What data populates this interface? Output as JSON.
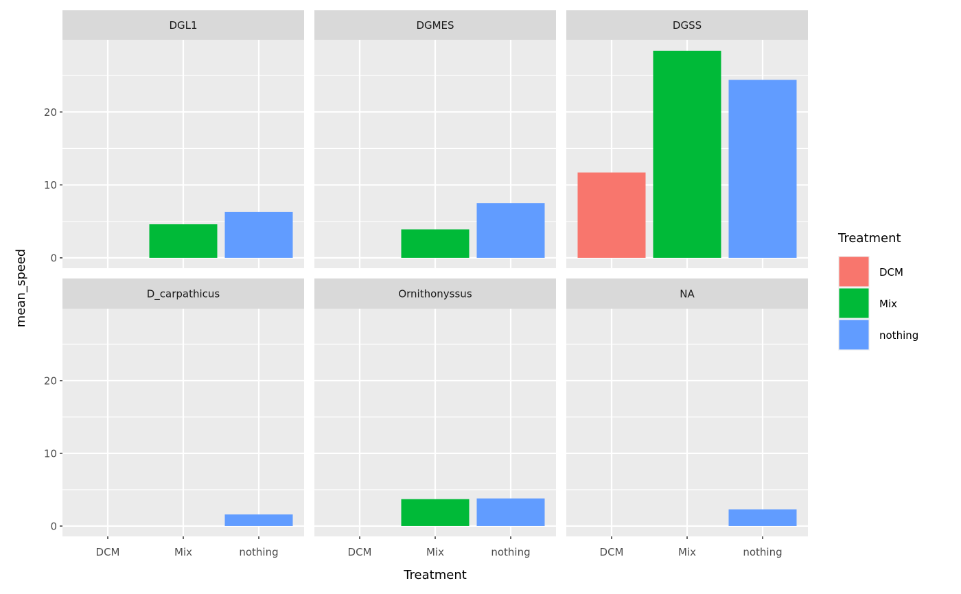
{
  "chart_data": {
    "type": "bar",
    "layout": "facet_wrap",
    "xlabel": "Treatment",
    "ylabel": "mean_speed",
    "categories": [
      "DCM",
      "Mix",
      "nothing"
    ],
    "ylim": [
      -1.42,
      29.9
    ],
    "yticks": [
      0,
      10,
      20
    ],
    "yticks_minor": [
      5,
      15,
      25
    ],
    "grid": true,
    "legend": {
      "title": "Treatment",
      "position": "right",
      "entries": [
        {
          "label": "DCM",
          "color": "#F8766D"
        },
        {
          "label": "Mix",
          "color": "#00BA38"
        },
        {
          "label": "nothing",
          "color": "#619CFF"
        }
      ]
    },
    "panels": [
      {
        "title": "DGL1",
        "values": [
          null,
          4.6,
          6.3
        ]
      },
      {
        "title": "DGMES",
        "values": [
          null,
          3.9,
          7.5
        ]
      },
      {
        "title": "DGSS",
        "values": [
          11.7,
          28.4,
          24.4
        ]
      },
      {
        "title": "D_carpathicus",
        "values": [
          null,
          null,
          1.6
        ]
      },
      {
        "title": "Ornithonyssus",
        "values": [
          null,
          3.7,
          3.8
        ]
      },
      {
        "title": "NA",
        "values": [
          null,
          null,
          2.3
        ]
      }
    ]
  }
}
